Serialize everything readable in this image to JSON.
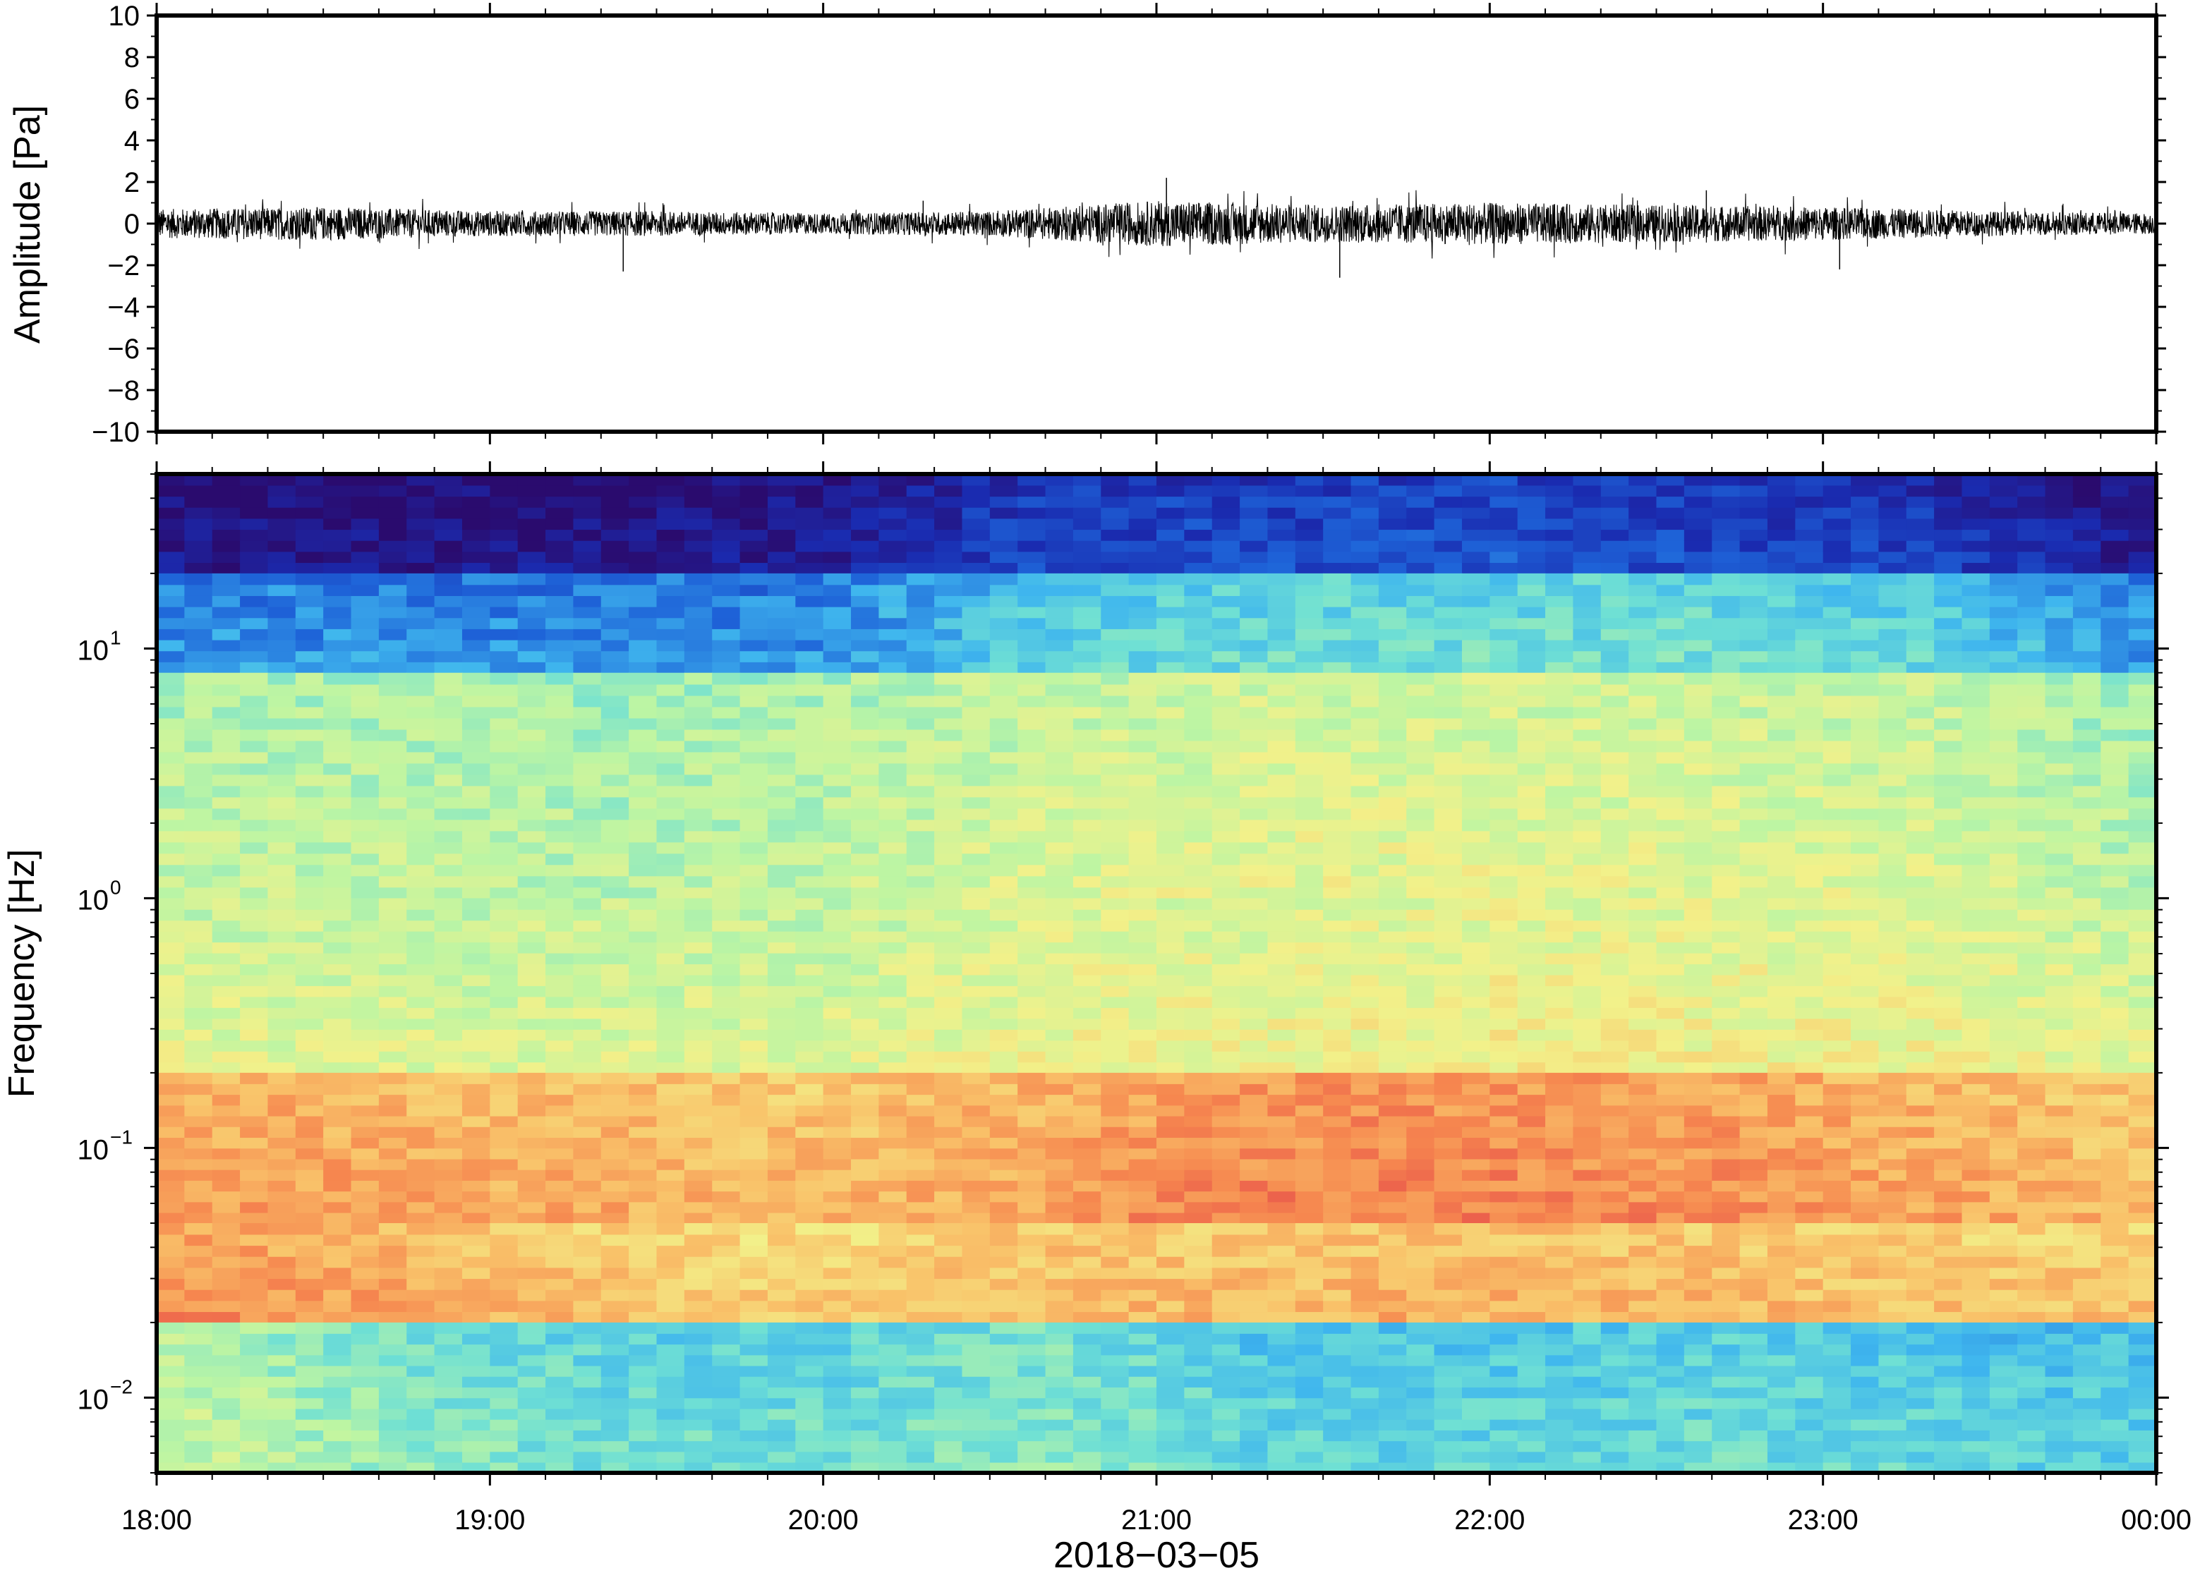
{
  "chart_data": [
    {
      "type": "line",
      "panel": "waveform",
      "ylabel": "Amplitude [Pa]",
      "xlabel": "",
      "ylim": [
        -10,
        10
      ],
      "yticks": [
        "10",
        "8",
        "6",
        "4",
        "2",
        "0",
        "−2",
        "−4",
        "−6",
        "−8",
        "−10"
      ],
      "ytick_values": [
        10,
        8,
        6,
        4,
        2,
        0,
        -2,
        -4,
        -6,
        -8,
        -10
      ],
      "x_range": [
        "18:00",
        "00:00"
      ],
      "series": [
        {
          "color": "#000000",
          "x_hours": [
            18.0,
            18.5,
            19.0,
            19.5,
            20.0,
            20.5,
            21.0,
            21.5,
            22.0,
            22.5,
            23.0,
            23.5,
            24.0
          ],
          "envelope_pa": [
            0.7,
            0.8,
            0.6,
            0.6,
            0.5,
            0.6,
            1.1,
            0.9,
            1.0,
            0.9,
            0.8,
            0.6,
            0.5
          ],
          "peaks": [
            {
              "x_hours": 19.4,
              "value": -2.3
            },
            {
              "x_hours": 20.3,
              "value": 1.1
            },
            {
              "x_hours": 21.03,
              "value": 2.2
            },
            {
              "x_hours": 21.55,
              "value": -2.6
            },
            {
              "x_hours": 22.65,
              "value": 1.6
            },
            {
              "x_hours": 23.05,
              "value": -2.2
            }
          ]
        }
      ],
      "grid": false
    },
    {
      "type": "heatmap",
      "panel": "spectrogram",
      "ylabel": "Frequency [Hz]",
      "xlabel": "2018−03−05",
      "yscale": "log",
      "ylim": [
        0.005,
        50
      ],
      "yticks": [
        {
          "base": "10",
          "exp": "1",
          "value": 10
        },
        {
          "base": "10",
          "exp": "0",
          "value": 1
        },
        {
          "base": "10",
          "exp": "−1",
          "value": 0.1
        },
        {
          "base": "10",
          "exp": "−2",
          "value": 0.01
        }
      ],
      "xticks": [
        "18:00",
        "19:00",
        "20:00",
        "21:00",
        "22:00",
        "23:00",
        "00:00"
      ],
      "colormap": [
        "#2a0b6e",
        "#1a2bb0",
        "#1e63d8",
        "#3fb6ee",
        "#6fe0d4",
        "#bdf5a3",
        "#f2f18a",
        "#f9c36a",
        "#f6874f",
        "#e5474a"
      ],
      "time_bins": 72,
      "rows_hz": [
        {
          "freq_range_hz": [
            20,
            50
          ],
          "level": [
            0.05,
            0.05,
            0.05,
            0.08,
            0.18,
            0.18,
            0.2,
            0.18,
            0.15,
            0.06
          ]
        },
        {
          "freq_range_hz": [
            8,
            20
          ],
          "level": [
            0.3,
            0.3,
            0.28,
            0.3,
            0.42,
            0.44,
            0.45,
            0.45,
            0.42,
            0.3
          ]
        },
        {
          "freq_range_hz": [
            1,
            8
          ],
          "level": [
            0.58,
            0.58,
            0.56,
            0.58,
            0.62,
            0.64,
            0.64,
            0.63,
            0.62,
            0.56
          ]
        },
        {
          "freq_range_hz": [
            0.2,
            1
          ],
          "level": [
            0.63,
            0.62,
            0.62,
            0.62,
            0.66,
            0.66,
            0.68,
            0.67,
            0.66,
            0.63
          ]
        },
        {
          "freq_range_hz": [
            0.05,
            0.2
          ],
          "level": [
            0.86,
            0.84,
            0.82,
            0.8,
            0.85,
            0.9,
            0.9,
            0.88,
            0.84,
            0.8
          ]
        },
        {
          "freq_range_hz": [
            0.02,
            0.05
          ],
          "level": [
            0.88,
            0.84,
            0.78,
            0.76,
            0.8,
            0.8,
            0.82,
            0.8,
            0.78,
            0.78
          ]
        },
        {
          "freq_range_hz": [
            0.005,
            0.02
          ],
          "level": [
            0.6,
            0.5,
            0.45,
            0.45,
            0.5,
            0.42,
            0.42,
            0.44,
            0.42,
            0.4
          ]
        }
      ]
    }
  ]
}
